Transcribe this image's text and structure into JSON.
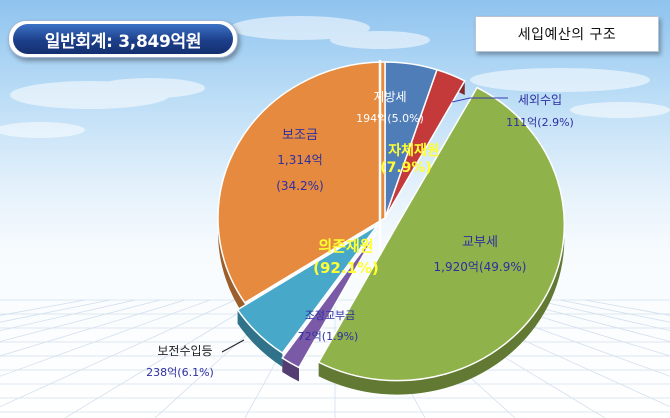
{
  "header": {
    "title": "일반회계: 3,849억원",
    "structure_label": "세입예산의 구조"
  },
  "colors": {
    "title_bg": "#1d3f8b",
    "slice_local_tax": "#4f7db8",
    "slice_non_tax": "#c43a3a",
    "slice_grant": "#8fb24a",
    "slice_adjust": "#7a5aa6",
    "slice_preserve": "#47a8c9",
    "slice_subsidy": "#e58a3e"
  },
  "chart_data": {
    "type": "pie",
    "style": "3d",
    "slices": [
      {
        "key": "local_tax",
        "name": "지방세",
        "value": 194,
        "value_text": "194억(5.0%)",
        "percent": 5.0
      },
      {
        "key": "non_tax",
        "name": "세외수입",
        "value": 111,
        "value_text": "111억(2.9%)",
        "percent": 2.9
      },
      {
        "key": "grant",
        "name": "교부세",
        "value": 1920,
        "value_text": "1,920억(49.9%)",
        "percent": 49.9
      },
      {
        "key": "adjust",
        "name": "조정교부금",
        "value": 72,
        "value_text": "72억(1.9%)",
        "percent": 1.9
      },
      {
        "key": "preserve",
        "name": "보전수입등",
        "value": 238,
        "value_text": "238억(6.1%)",
        "percent": 6.1
      },
      {
        "key": "subsidy",
        "name": "보조금",
        "value": 1314,
        "value_text": "1,314억",
        "percent_text": "(34.2%)",
        "percent": 34.2
      }
    ],
    "groups": [
      {
        "name": "자체재원",
        "percent_text": "(7.9%)"
      },
      {
        "name": "의존재원",
        "percent_text": "(92.1%)"
      }
    ]
  }
}
